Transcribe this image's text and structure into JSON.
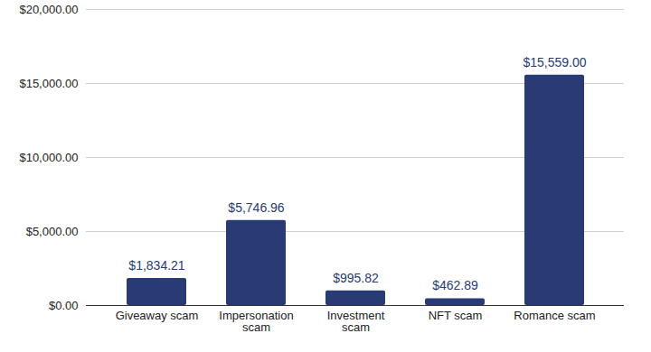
{
  "chart_data": {
    "type": "bar",
    "categories": [
      "Giveaway scam",
      "Impersonation scam",
      "Investment scam",
      "NFT scam",
      "Romance scam"
    ],
    "values": [
      1834.21,
      5746.96,
      995.82,
      462.89,
      15559.0
    ],
    "value_labels": [
      "$1,834.21",
      "$5,746.96",
      "$995.82",
      "$462.89",
      "$15,559.00"
    ],
    "data_labels": true,
    "color": "#283b74",
    "ylim": [
      0,
      20000
    ],
    "yticks": [
      {
        "value": 0,
        "label": "$0.00"
      },
      {
        "value": 5000,
        "label": "$5,000.00"
      },
      {
        "value": 10000,
        "label": "$10,000.00"
      },
      {
        "value": 15000,
        "label": "$15,000.00"
      },
      {
        "value": 20000,
        "label": "$20,000.00"
      }
    ],
    "grid": true
  }
}
